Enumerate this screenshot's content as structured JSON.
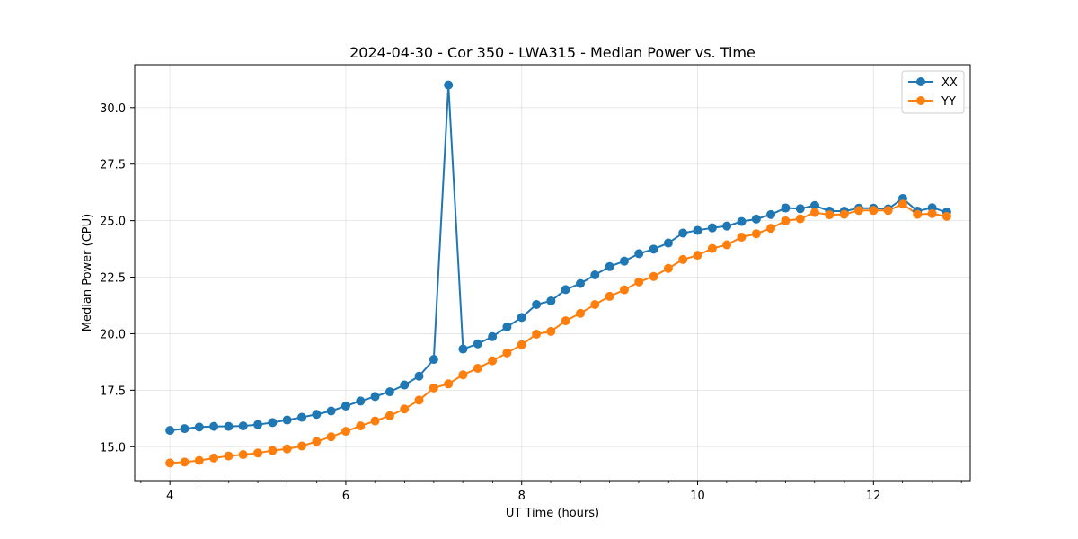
{
  "chart_data": {
    "type": "line",
    "title": "2024-04-30 - Cor 350 - LWA315 - Median Power vs. Time",
    "xlabel": "UT Time (hours)",
    "ylabel": "Median Power (CPU)",
    "xlim": [
      3.6,
      13.1
    ],
    "ylim": [
      13.5,
      31.9
    ],
    "x_ticks": [
      4,
      6,
      8,
      10,
      12
    ],
    "x_tick_labels": [
      "4",
      "6",
      "8",
      "10",
      "12"
    ],
    "x_minor_ticks": [
      3.67,
      4.33,
      4.67,
      5,
      5.33,
      5.67,
      6.33,
      6.67,
      7,
      7.33,
      7.67,
      8.33,
      8.67,
      9,
      9.33,
      9.67,
      10.33,
      10.67,
      11,
      11.33,
      11.67,
      12.33,
      12.67,
      13
    ],
    "y_ticks": [
      15.0,
      17.5,
      20.0,
      22.5,
      25.0,
      27.5,
      30.0
    ],
    "y_tick_labels": [
      "15.0",
      "17.5",
      "20.0",
      "22.5",
      "25.0",
      "27.5",
      "30.0"
    ],
    "grid": true,
    "legend_position": "top-right",
    "x": [
      4.0,
      4.167,
      4.333,
      4.5,
      4.667,
      4.833,
      5.0,
      5.167,
      5.333,
      5.5,
      5.667,
      5.833,
      6.0,
      6.167,
      6.333,
      6.5,
      6.667,
      6.833,
      7.0,
      7.167,
      7.333,
      7.5,
      7.667,
      7.833,
      8.0,
      8.167,
      8.333,
      8.5,
      8.667,
      8.833,
      9.0,
      9.167,
      9.333,
      9.5,
      9.667,
      9.833,
      10.0,
      10.167,
      10.333,
      10.5,
      10.667,
      10.833,
      11.0,
      11.167,
      11.333,
      11.5,
      11.667,
      11.833,
      12.0,
      12.167,
      12.333,
      12.5,
      12.667,
      12.833
    ],
    "series": [
      {
        "name": "XX",
        "color": "#1f77b4",
        "values": [
          15.72,
          15.8,
          15.87,
          15.9,
          15.9,
          15.92,
          15.98,
          16.07,
          16.18,
          16.3,
          16.43,
          16.58,
          16.8,
          17.02,
          17.22,
          17.43,
          17.73,
          18.12,
          18.86,
          31.0,
          19.32,
          19.55,
          19.87,
          20.3,
          20.72,
          21.29,
          21.45,
          21.95,
          22.22,
          22.6,
          22.97,
          23.21,
          23.54,
          23.74,
          24.01,
          24.45,
          24.57,
          24.68,
          24.76,
          24.96,
          25.07,
          25.27,
          25.56,
          25.53,
          25.67,
          25.42,
          25.42,
          25.55,
          25.55,
          25.52,
          25.98,
          25.42,
          25.57,
          25.38
        ]
      },
      {
        "name": "YY",
        "color": "#ff7f0e",
        "values": [
          14.28,
          14.32,
          14.39,
          14.5,
          14.59,
          14.65,
          14.72,
          14.83,
          14.9,
          15.03,
          15.23,
          15.44,
          15.68,
          15.92,
          16.14,
          16.37,
          16.67,
          17.06,
          17.6,
          17.78,
          18.18,
          18.47,
          18.8,
          19.15,
          19.51,
          19.98,
          20.1,
          20.57,
          20.9,
          21.29,
          21.65,
          21.94,
          22.29,
          22.53,
          22.89,
          23.28,
          23.47,
          23.77,
          23.93,
          24.27,
          24.42,
          24.66,
          24.99,
          25.08,
          25.36,
          25.26,
          25.28,
          25.45,
          25.45,
          25.45,
          25.73,
          25.28,
          25.31,
          25.19
        ]
      }
    ]
  }
}
